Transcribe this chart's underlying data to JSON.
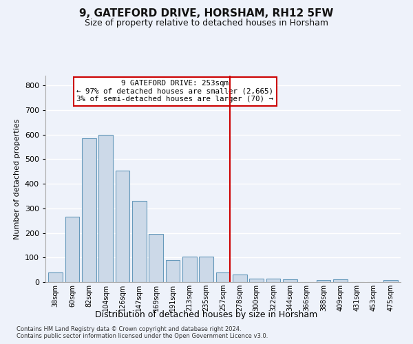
{
  "title": "9, GATEFORD DRIVE, HORSHAM, RH12 5FW",
  "subtitle": "Size of property relative to detached houses in Horsham",
  "xlabel": "Distribution of detached houses by size in Horsham",
  "ylabel": "Number of detached properties",
  "footer1": "Contains HM Land Registry data © Crown copyright and database right 2024.",
  "footer2": "Contains public sector information licensed under the Open Government Licence v3.0.",
  "bar_labels": [
    "38sqm",
    "60sqm",
    "82sqm",
    "104sqm",
    "126sqm",
    "147sqm",
    "169sqm",
    "191sqm",
    "213sqm",
    "235sqm",
    "257sqm",
    "278sqm",
    "300sqm",
    "322sqm",
    "344sqm",
    "366sqm",
    "388sqm",
    "409sqm",
    "431sqm",
    "453sqm",
    "475sqm"
  ],
  "bar_values": [
    40,
    265,
    585,
    600,
    455,
    330,
    195,
    90,
    103,
    103,
    40,
    32,
    15,
    15,
    10,
    0,
    8,
    10,
    0,
    0,
    8
  ],
  "bar_color": "#ccd9e8",
  "bar_edge_color": "#6699bb",
  "vline_x_index": 10.42,
  "vline_color": "#cc0000",
  "annotation_title": "9 GATEFORD DRIVE: 253sqm",
  "annotation_line1": "← 97% of detached houses are smaller (2,665)",
  "annotation_line2": "3% of semi-detached houses are larger (70) →",
  "annotation_box_color": "#cc0000",
  "background_color": "#eef2fa",
  "grid_color": "#ffffff",
  "ylim": [
    0,
    840
  ],
  "yticks": [
    0,
    100,
    200,
    300,
    400,
    500,
    600,
    700,
    800
  ]
}
